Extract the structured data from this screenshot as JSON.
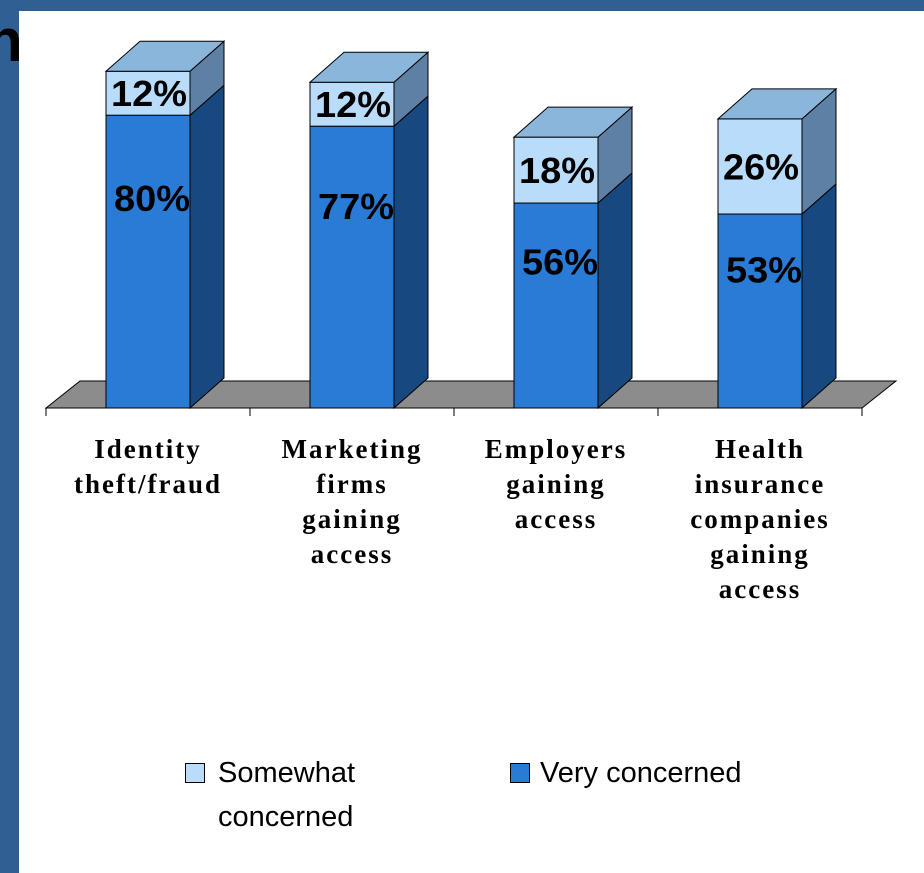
{
  "chart_data": {
    "type": "bar",
    "stacked": true,
    "three_d": true,
    "categories": [
      "Identity theft/fraud",
      "Marketing firms gaining access",
      "Employers gaining access",
      "Health insurance companies gaining access"
    ],
    "series": [
      {
        "name": "Very concerned",
        "values": [
          80,
          77,
          56,
          53
        ],
        "labels": [
          "80%",
          "77%",
          "56%",
          "53%"
        ],
        "color": "#2a7bd6"
      },
      {
        "name": "Somewhat concerned",
        "values": [
          12,
          12,
          18,
          26
        ],
        "labels": [
          "12%",
          "12%",
          "18%",
          "26%"
        ],
        "color": "#b9dcfa"
      }
    ],
    "ylim": [
      0,
      100
    ],
    "grid": false,
    "legend_position": "bottom",
    "title": "",
    "xlabel": "",
    "ylabel": ""
  },
  "legend": {
    "somewhat": "Somewhat concerned",
    "very": "Very concerned"
  },
  "colors": {
    "frame": "#2f5f93",
    "very_front": "#2a7bd6",
    "very_side": "#17487f",
    "somewhat_front": "#b9dcfa",
    "somewhat_top": "#8ab6dc",
    "somewhat_side": "#5e80a5",
    "floor": "#8c8c8c"
  }
}
